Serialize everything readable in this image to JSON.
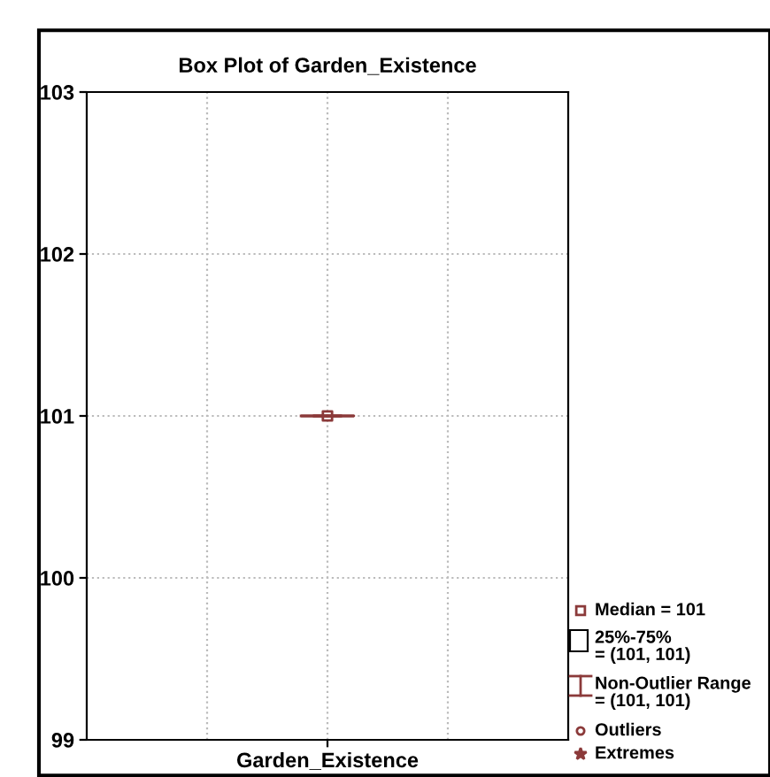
{
  "chart_data": {
    "type": "box",
    "title": "Box Plot of Garden_Existence",
    "categories": [
      "Garden_Existence"
    ],
    "boxes": [
      {
        "low": 101,
        "q1": 101,
        "median": 101,
        "q3": 101,
        "high": 101
      }
    ],
    "color": "#8b3a3a",
    "ylim": [
      99,
      103
    ],
    "yticks": [
      99,
      100,
      101,
      102,
      103
    ],
    "grid": true,
    "annotations": [
      "Median = 101",
      "25%-75%\n= (101, 101)",
      "Non-Outlier Range\n= (101, 101)",
      "Outliers",
      "Extremes"
    ]
  }
}
